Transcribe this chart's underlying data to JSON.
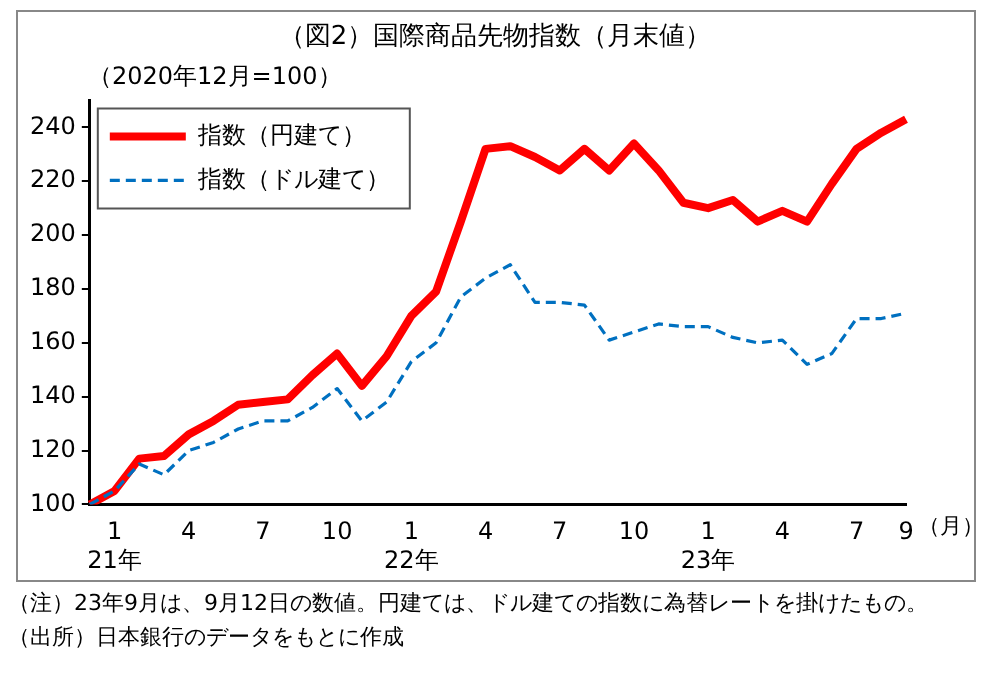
{
  "chart_data": {
    "type": "line",
    "title": "（図2）国際商品先物指数（月末値）",
    "subtitle": "（2020年12月=100）",
    "xlabel": "（月）",
    "categories": [
      null,
      "1\n21年",
      null,
      null,
      "4",
      null,
      null,
      "7",
      null,
      null,
      "10",
      null,
      null,
      "1\n22年",
      null,
      null,
      "4",
      null,
      null,
      "7",
      null,
      null,
      "10",
      null,
      null,
      "1\n23年",
      null,
      null,
      "4",
      null,
      null,
      "7",
      null,
      "9"
    ],
    "series": [
      {
        "name": "指数（円建て）",
        "color": "#ff0000",
        "line_style": "solid",
        "values": [
          100,
          105,
          117,
          118,
          126,
          131,
          137,
          138,
          139,
          148,
          156,
          144,
          155,
          170,
          179,
          205,
          232,
          233,
          229,
          224,
          232,
          224,
          234,
          224,
          212,
          210,
          213,
          205,
          209,
          205,
          219,
          232,
          238,
          243
        ]
      },
      {
        "name": "指数（ドル建て）",
        "color": "#0070c0",
        "line_style": "dashed",
        "values": [
          100,
          105,
          115,
          111,
          120,
          123,
          128,
          131,
          131,
          136,
          143,
          131,
          138,
          153,
          160,
          177,
          184,
          189,
          175,
          175,
          174,
          161,
          164,
          167,
          166,
          166,
          162,
          160,
          161,
          152,
          156,
          169,
          169,
          171
        ]
      }
    ],
    "ylim": [
      100,
      250
    ],
    "yticks": [
      100,
      120,
      140,
      160,
      180,
      200,
      220,
      240
    ],
    "grid": false,
    "legend": "top left",
    "marker": "none",
    "annotations": [
      "（注）23年9月は、9月12日の数値。円建ては、ドル建ての指数に為替レートを掛けたもの。",
      "（出所）日本銀行のデータをもとに作成"
    ]
  }
}
